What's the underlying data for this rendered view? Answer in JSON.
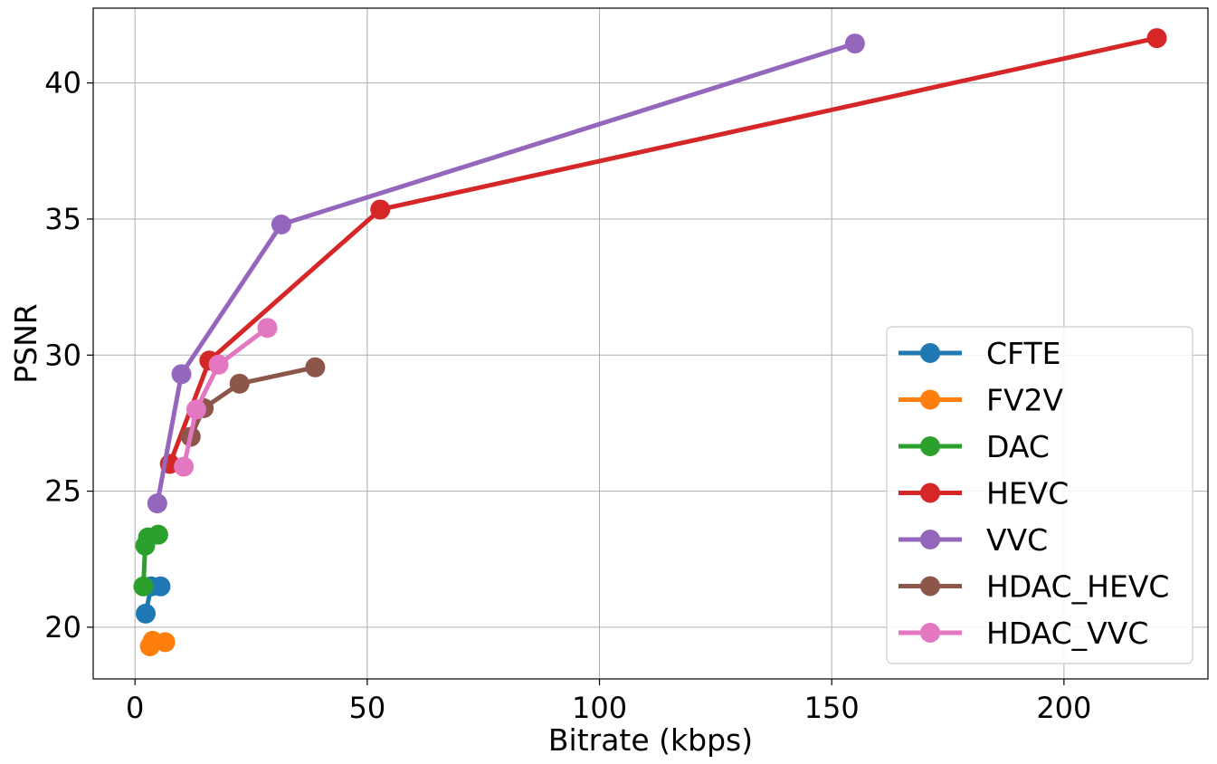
{
  "chart_data": {
    "type": "line",
    "xlabel": "Bitrate (kbps)",
    "ylabel": "PSNR",
    "xlim": [
      -9,
      231
    ],
    "ylim": [
      18.1,
      42.75
    ],
    "xticks": [
      0,
      50,
      100,
      150,
      200
    ],
    "yticks": [
      20,
      25,
      30,
      35,
      40
    ],
    "grid": true,
    "legend_position": "lower-right",
    "series": [
      {
        "name": "CFTE",
        "color": "#1f77b4",
        "points": [
          [
            2.3,
            20.5
          ],
          [
            3.5,
            21.5
          ],
          [
            5.5,
            21.5
          ]
        ]
      },
      {
        "name": "FV2V",
        "color": "#ff7f0e",
        "points": [
          [
            3.2,
            19.3
          ],
          [
            3.8,
            19.5
          ],
          [
            6.5,
            19.45
          ]
        ]
      },
      {
        "name": "DAC",
        "color": "#2ca02c",
        "points": [
          [
            1.8,
            21.5
          ],
          [
            2.2,
            23.0
          ],
          [
            2.8,
            23.3
          ],
          [
            5.0,
            23.4
          ]
        ]
      },
      {
        "name": "HEVC",
        "color": "#d62728",
        "points": [
          [
            7.5,
            26.0
          ],
          [
            16.0,
            29.8
          ],
          [
            52.8,
            35.35
          ],
          [
            220.0,
            41.65
          ]
        ]
      },
      {
        "name": "VVC",
        "color": "#9467bd",
        "points": [
          [
            4.8,
            24.55
          ],
          [
            10.0,
            29.3
          ],
          [
            31.5,
            34.8
          ],
          [
            155.0,
            41.45
          ]
        ]
      },
      {
        "name": "HDAC_HEVC",
        "color": "#8c564b",
        "points": [
          [
            12.0,
            27.0
          ],
          [
            14.8,
            28.05
          ],
          [
            22.5,
            28.95
          ],
          [
            38.8,
            29.55
          ]
        ]
      },
      {
        "name": "HDAC_VVC",
        "color": "#e377c2",
        "points": [
          [
            10.5,
            25.9
          ],
          [
            13.2,
            28.0
          ],
          [
            18.0,
            29.65
          ],
          [
            28.5,
            31.0
          ]
        ]
      }
    ]
  }
}
